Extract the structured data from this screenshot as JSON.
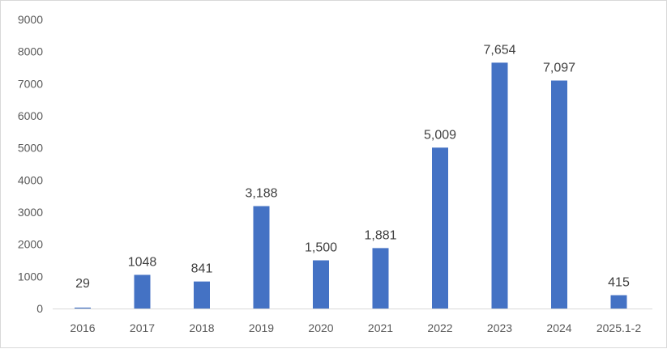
{
  "chart_data": {
    "type": "bar",
    "categories": [
      "2016",
      "2017",
      "2018",
      "2019",
      "2020",
      "2021",
      "2022",
      "2023",
      "2024",
      "2025.1-2"
    ],
    "values": [
      29,
      1048,
      841,
      3188,
      1500,
      1881,
      5009,
      7654,
      7097,
      415
    ],
    "data_labels": [
      "29",
      "1048",
      "841",
      "3,188",
      "1,500",
      "1,881",
      "5,009",
      "7,654",
      "7,097",
      "415"
    ],
    "y_ticks": [
      "0",
      "1000",
      "2000",
      "3000",
      "4000",
      "5000",
      "6000",
      "7000",
      "8000",
      "9000"
    ],
    "ylim": [
      0,
      9000
    ],
    "grid": false,
    "legend": "none",
    "bar_color": "#4472c4",
    "axis_color": "#d9d9d9",
    "title": "",
    "xlabel": "",
    "ylabel": ""
  }
}
